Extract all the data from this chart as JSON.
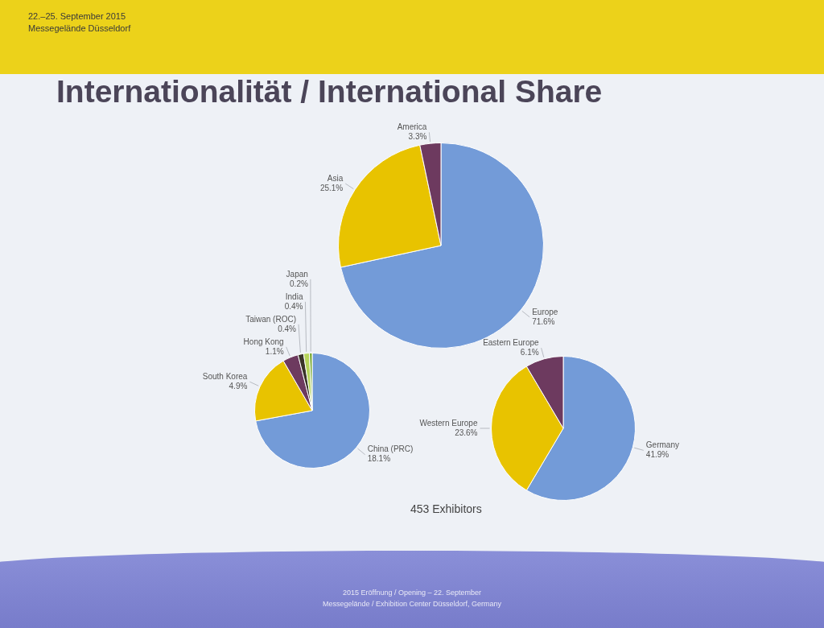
{
  "chart_data": [
    {
      "type": "pie",
      "title": "Internationalität / International Share",
      "categories": [
        "Europe",
        "Asia",
        "America"
      ],
      "values": [
        71.6,
        25.1,
        3.3
      ],
      "colors": [
        "#739bd8",
        "#e8c300",
        "#6d3a5f"
      ],
      "value_labels": [
        "71.6%",
        "25.1%",
        "3.3%"
      ],
      "annotations": [
        "22.–25. September 2015",
        "Messegelände Düsseldorf",
        "453 Exhibitors",
        "2015 Eröffnung / Opening – 22. September",
        "Messegelände / Exhibition Center Düsseldorf, Germany"
      ]
    },
    {
      "type": "pie",
      "categories": [
        "China (PRC)",
        "South Korea",
        "Hong Kong",
        "Taiwan (ROC)",
        "India",
        "Japan"
      ],
      "values": [
        18.1,
        4.9,
        1.1,
        0.4,
        0.4,
        0.2
      ],
      "colors": [
        "#739bd8",
        "#e8c300",
        "#6d3a5f",
        "#3a3428",
        "#b6d45a",
        "#7fae3a"
      ],
      "value_labels": [
        "18.1%",
        "4.9%",
        "1.1%",
        "0.4%",
        "0.4%",
        "0.2%"
      ]
    },
    {
      "type": "pie",
      "categories": [
        "Germany",
        "Western Europe",
        "Eastern Europe"
      ],
      "values": [
        41.9,
        23.6,
        6.1
      ],
      "colors": [
        "#739bd8",
        "#e8c300",
        "#6d3a5f"
      ],
      "value_labels": [
        "41.9%",
        "23.6%",
        "6.1%"
      ]
    }
  ]
}
